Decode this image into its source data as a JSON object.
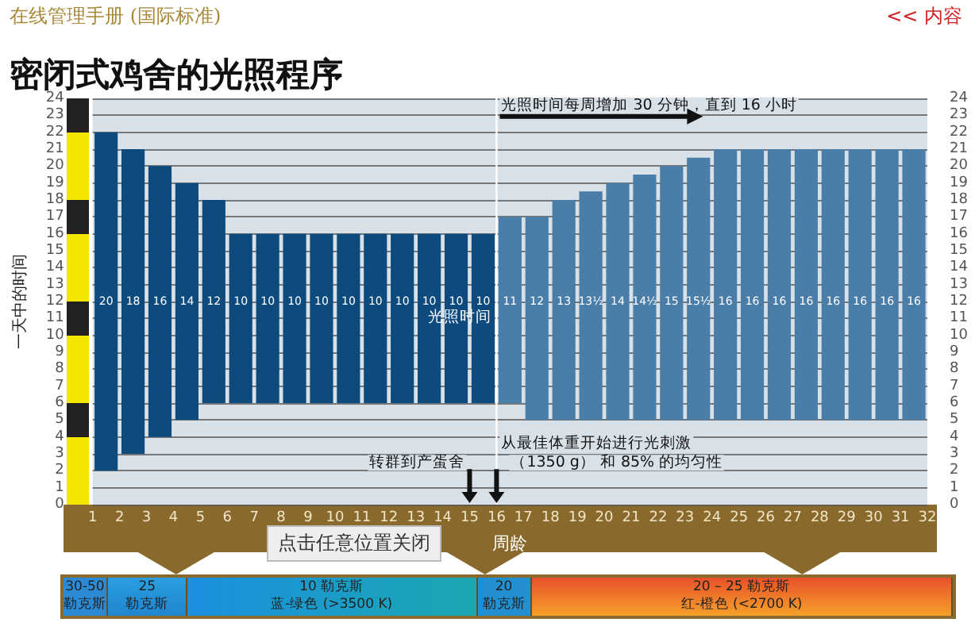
{
  "chart_data": {
    "type": "bar",
    "title": "密闭式鸡舍的光照程序",
    "xlabel": "周龄",
    "ylabel": "一天中的时间",
    "x": [
      1.5,
      2.5,
      3.5,
      4.5,
      5.5,
      6.5,
      7.5,
      8.5,
      9.5,
      10.5,
      11.5,
      12.5,
      13.5,
      14.5,
      15.5,
      16.5,
      17.5,
      18.5,
      19.5,
      20.5,
      21.5,
      22.5,
      23.5,
      24.5,
      25.5,
      26.5,
      27.5,
      28.5,
      29.5,
      30.5,
      31.5
    ],
    "values": [
      20,
      18,
      16,
      14,
      12,
      10,
      10,
      10,
      10,
      10,
      10,
      10,
      10,
      10,
      10,
      11,
      12,
      13,
      13.5,
      14,
      14.5,
      15,
      15.5,
      16,
      16,
      16,
      16,
      16,
      16,
      16,
      16
    ],
    "base": [
      2,
      3,
      4,
      5,
      6,
      6,
      6,
      6,
      6,
      6,
      6,
      6,
      6,
      6,
      6,
      6,
      5,
      5,
      5,
      5,
      5,
      5,
      5,
      5,
      5,
      5,
      5,
      5,
      5,
      5,
      5
    ],
    "value_labels": [
      "20",
      "18",
      "16",
      "14",
      "12",
      "10",
      "10",
      "10",
      "10",
      "10",
      "10",
      "10",
      "10",
      "10",
      "10",
      "11",
      "12",
      "13",
      "13½",
      "14",
      "14½",
      "15",
      "15½",
      "16",
      "16",
      "16",
      "16",
      "16",
      "16",
      "16",
      "16"
    ],
    "colors": [
      "#0d4a7e",
      "#0d4a7e",
      "#0d4a7e",
      "#0d4a7e",
      "#0d4a7e",
      "#0d4a7e",
      "#0d4a7e",
      "#0d4a7e",
      "#0d4a7e",
      "#0d4a7e",
      "#0d4a7e",
      "#0d4a7e",
      "#0d4a7e",
      "#0d4a7e",
      "#0d4a7e",
      "#4a7ea8",
      "#4a7ea8",
      "#4a7ea8",
      "#4a7ea8",
      "#4a7ea8",
      "#4a7ea8",
      "#4a7ea8",
      "#4a7ea8",
      "#4a7ea8",
      "#4a7ea8",
      "#4a7ea8",
      "#4a7ea8",
      "#4a7ea8",
      "#4a7ea8",
      "#4a7ea8",
      "#4a7ea8"
    ],
    "xlim": [
      1,
      32
    ],
    "xticks": [
      1,
      2,
      3,
      4,
      5,
      6,
      7,
      8,
      9,
      10,
      11,
      12,
      13,
      14,
      15,
      16,
      17,
      18,
      19,
      20,
      21,
      22,
      23,
      24,
      25,
      26,
      27,
      28,
      29,
      30,
      31,
      32
    ],
    "ylim": [
      0,
      24
    ],
    "yticks": [
      0,
      1,
      2,
      3,
      4,
      5,
      6,
      7,
      8,
      9,
      10,
      11,
      12,
      13,
      14,
      15,
      16,
      17,
      18,
      19,
      20,
      21,
      22,
      23,
      24
    ],
    "y2lim": [
      0,
      24
    ],
    "y2ticks": [
      0,
      1,
      2,
      3,
      4,
      5,
      6,
      7,
      8,
      9,
      10,
      11,
      12,
      13,
      14,
      15,
      16,
      17,
      18,
      19,
      20,
      21,
      22,
      23,
      24
    ],
    "ref_lines": [
      {
        "axis": "x",
        "value": 16,
        "color": "#ffffff"
      }
    ],
    "grid": "y",
    "annotations": [
      "在线管理手册 (国际标准)",
      "<< 内容",
      "点击任意位置关闭",
      "光照时间每周增加 30 分钟，直到 16 小时",
      "光照时间",
      "转群到产蛋舍",
      "从最佳体重开始进行光刺激",
      "（1350 g） 和 85% 的均匀性",
      "30-50",
      "勒克斯",
      "25",
      "勒克斯",
      "10 勒克斯",
      "蓝-绿色 (>3500 K)",
      "20",
      "勒克斯",
      "20 – 25 勒克斯",
      "红-橙色 (<2700 K)"
    ]
  }
}
